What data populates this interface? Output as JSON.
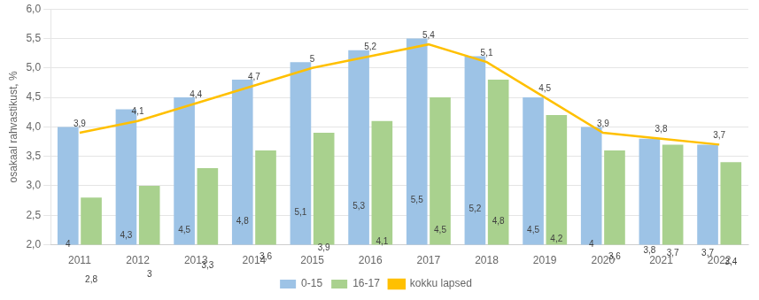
{
  "chart_data": {
    "type": "bar",
    "categories": [
      "2011",
      "2012",
      "2013",
      "2014",
      "2015",
      "2016",
      "2017",
      "2018",
      "2019",
      "2020",
      "2021",
      "2022"
    ],
    "ylabel": "osakaal rahvastikust, %",
    "ylim": [
      2.0,
      6.0
    ],
    "yticks": [
      {
        "value": 2.0,
        "label": "2,0"
      },
      {
        "value": 2.5,
        "label": "2,5"
      },
      {
        "value": 3.0,
        "label": "3,0"
      },
      {
        "value": 3.5,
        "label": "3,5"
      },
      {
        "value": 4.0,
        "label": "4,0"
      },
      {
        "value": 4.5,
        "label": "4,5"
      },
      {
        "value": 5.0,
        "label": "5,0"
      },
      {
        "value": 5.5,
        "label": "5,5"
      },
      {
        "value": 6.0,
        "label": "6,0"
      }
    ],
    "grid": true,
    "legend": "bottom",
    "data_labels": true,
    "series": [
      {
        "name": "0-15",
        "color": "#9dc3e6",
        "values": [
          4.0,
          4.3,
          4.5,
          4.8,
          5.1,
          5.3,
          5.5,
          5.2,
          4.5,
          4.0,
          3.8,
          3.7
        ],
        "value_labels": [
          "4",
          "4,3",
          "4,5",
          "4,8",
          "5,1",
          "5,3",
          "5,5",
          "5,2",
          "4,5",
          "4",
          "3,8",
          "3,7"
        ]
      },
      {
        "name": "16-17",
        "color": "#a9d18e",
        "values": [
          2.8,
          3.0,
          3.3,
          3.6,
          3.9,
          4.1,
          4.5,
          4.8,
          4.2,
          3.6,
          3.7,
          3.4
        ],
        "value_labels": [
          "2,8",
          "3",
          "3,3",
          "3,6",
          "3,9",
          "4,1",
          "4,5",
          "4,8",
          "4,2",
          "3,6",
          "3,7",
          "3,4"
        ]
      },
      {
        "name": "kokku lapsed",
        "color": "#ffc000",
        "type": "line",
        "values": [
          3.9,
          4.1,
          4.4,
          4.7,
          5.0,
          5.2,
          5.4,
          5.1,
          4.5,
          3.9,
          3.8,
          3.7
        ],
        "value_labels": [
          "3,9",
          "4,1",
          "4,4",
          "4,7",
          "5",
          "5,2",
          "5,4",
          "5,1",
          "4,5",
          "3,9",
          "3,8",
          "3,7"
        ]
      }
    ]
  }
}
